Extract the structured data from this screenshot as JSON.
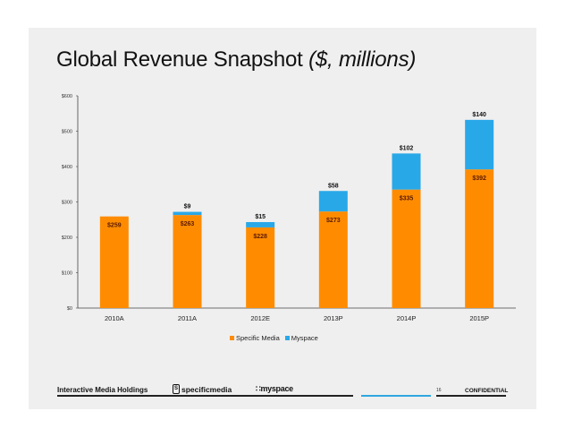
{
  "slide": {
    "title": "Global Revenue Snapshot",
    "title_unit": "($, millions)"
  },
  "chart_data": {
    "type": "bar",
    "stacked": true,
    "categories": [
      "2010A",
      "2011A",
      "2012E",
      "2013P",
      "2014P",
      "2015P"
    ],
    "series": [
      {
        "name": "Specific Media",
        "values": [
          259,
          263,
          228,
          273,
          335,
          392
        ],
        "color": "#ff8c00",
        "labels": [
          "$259",
          "$263",
          "$228",
          "$273",
          "$335",
          "$392"
        ]
      },
      {
        "name": "Myspace",
        "values": [
          0,
          9,
          15,
          58,
          102,
          140
        ],
        "color": "#29a8e8",
        "labels": [
          "",
          "$9",
          "$15",
          "$58",
          "$102",
          "$140"
        ]
      }
    ],
    "y_ticks": [
      "$0",
      "$100",
      "$200",
      "$300",
      "$400",
      "$500",
      "$600"
    ],
    "ylim": [
      0,
      600
    ],
    "grid": false,
    "legend_position": "bottom"
  },
  "footer": {
    "company": "Interactive Media Holdings",
    "logo_specific_media": {
      "mark": "S",
      "text": "specificmedia"
    },
    "logo_myspace": "myspace",
    "page_number": "16",
    "confidential": "CONFIDENTIAL",
    "accent_color": "#2ea7e0"
  }
}
